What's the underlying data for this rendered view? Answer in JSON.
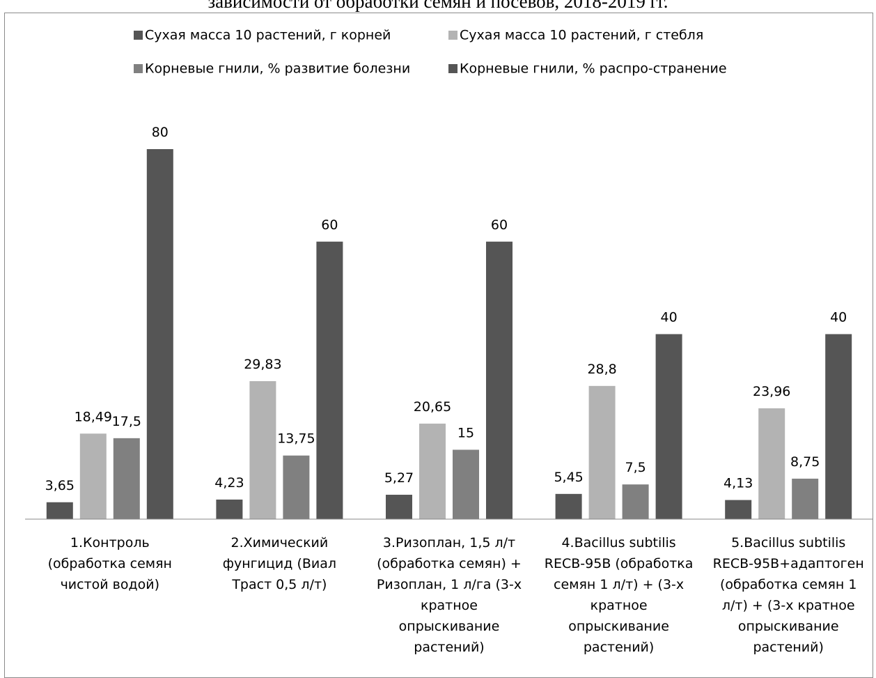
{
  "page": {
    "title": "зависимости от обработки семян и посевов, 2018-2019 гг."
  },
  "colors": {
    "roots_mass": "#555555",
    "stem_mass": "#b3b3b3",
    "disease_development": "#808080",
    "disease_spread": "#555555",
    "axis": "#8a8a8a"
  },
  "chart_data": {
    "type": "bar",
    "title": "",
    "xlabel": "",
    "ylabel": "",
    "ylim": [
      0,
      80
    ],
    "grid": false,
    "legend_position": "top",
    "categories": [
      [
        "1.Контроль",
        "(обработка семян",
        "чистой водой)"
      ],
      [
        "2.Химический",
        "фунгицид (Виал",
        "Траст 0,5 л/т)"
      ],
      [
        "3.Ризоплан, 1,5 л/т",
        "(обработка семян) +",
        "Ризоплан, 1 л/га (3-х",
        "кратное",
        "опрыскивание",
        "растений)"
      ],
      [
        "4.Bacillus subtilis",
        "RECB-95B (обработка",
        "семян 1 л/т) + (3-х",
        "кратное",
        "опрыскивание",
        "растений)"
      ],
      [
        "5.Bacillus subtilis",
        "RECB-95B+адаптоген",
        "(обработка семян 1",
        "л/т) + (3-х кратное",
        "опрыскивание",
        "растений)"
      ]
    ],
    "series": [
      {
        "name": "Сухая масса 10 растений, г корней",
        "color": "#555555",
        "values": [
          3.65,
          4.23,
          5.27,
          5.45,
          4.13
        ],
        "labels": [
          "3,65",
          "4,23",
          "5,27",
          "5,45",
          "4,13"
        ]
      },
      {
        "name": "Сухая масса 10 растений, г стебля",
        "color": "#b3b3b3",
        "values": [
          18.49,
          29.83,
          20.65,
          28.8,
          23.96
        ],
        "labels": [
          "18,49",
          "29,83",
          "20,65",
          "28,8",
          "23,96"
        ]
      },
      {
        "name": "Корневые гнили, % развитие болезни",
        "color": "#808080",
        "values": [
          17.5,
          13.75,
          15,
          7.5,
          8.75
        ],
        "labels": [
          "17,5",
          "13,75",
          "15",
          "7,5",
          "8,75"
        ]
      },
      {
        "name": "Корневые гнили, % распро-странение",
        "color": "#555555",
        "values": [
          80,
          60,
          60,
          40,
          40
        ],
        "labels": [
          "80",
          "60",
          "60",
          "40",
          "40"
        ]
      }
    ]
  }
}
